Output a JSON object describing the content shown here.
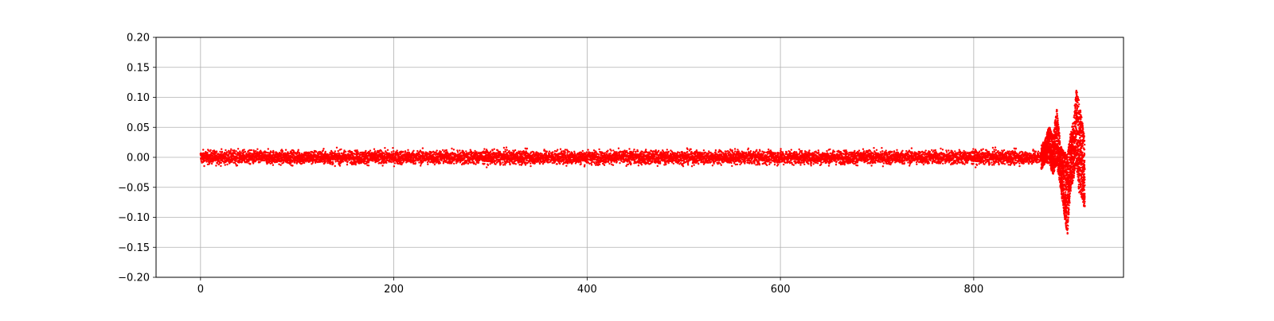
{
  "chart_data": {
    "type": "scatter",
    "title": "",
    "xlabel": "",
    "ylabel": "",
    "xlim": [
      -46,
      955
    ],
    "ylim": [
      -0.2,
      0.2
    ],
    "grid": true,
    "x_ticks": [
      0,
      200,
      400,
      600,
      800
    ],
    "y_ticks": [
      -0.2,
      -0.15,
      -0.1,
      -0.05,
      0.0,
      0.05,
      0.1,
      0.15,
      0.2
    ],
    "x_tick_labels": [
      "0",
      "200",
      "400",
      "600",
      "800"
    ],
    "y_tick_labels": [
      "−0.20",
      "−0.15",
      "−0.10",
      "−0.05",
      "0.00",
      "0.05",
      "0.10",
      "0.15",
      "0.20"
    ],
    "series": [
      {
        "color": "#ff0000",
        "marker": "dot",
        "x_range": [
          0,
          915
        ],
        "noise_band": {
          "x_from": 0,
          "x_to": 870,
          "typical_abs": 0.01,
          "max_abs": 0.024
        },
        "burst_envelope": [
          {
            "x": 870,
            "lo": -0.02,
            "hi": 0.02
          },
          {
            "x": 874,
            "lo": -0.01,
            "hi": 0.03
          },
          {
            "x": 878,
            "lo": -0.01,
            "hi": 0.053
          },
          {
            "x": 882,
            "lo": -0.03,
            "hi": 0.035
          },
          {
            "x": 886,
            "lo": -0.012,
            "hi": 0.082
          },
          {
            "x": 890,
            "lo": -0.055,
            "hi": 0.02
          },
          {
            "x": 894,
            "lo": -0.1,
            "hi": 0.01
          },
          {
            "x": 897,
            "lo": -0.132,
            "hi": 0.005
          },
          {
            "x": 900,
            "lo": -0.06,
            "hi": 0.04
          },
          {
            "x": 903,
            "lo": -0.04,
            "hi": 0.06
          },
          {
            "x": 906,
            "lo": -0.01,
            "hi": 0.117
          },
          {
            "x": 909,
            "lo": -0.06,
            "hi": 0.095
          },
          {
            "x": 912,
            "lo": -0.07,
            "hi": 0.065
          },
          {
            "x": 915,
            "lo": -0.09,
            "hi": 0.03
          }
        ]
      }
    ]
  }
}
